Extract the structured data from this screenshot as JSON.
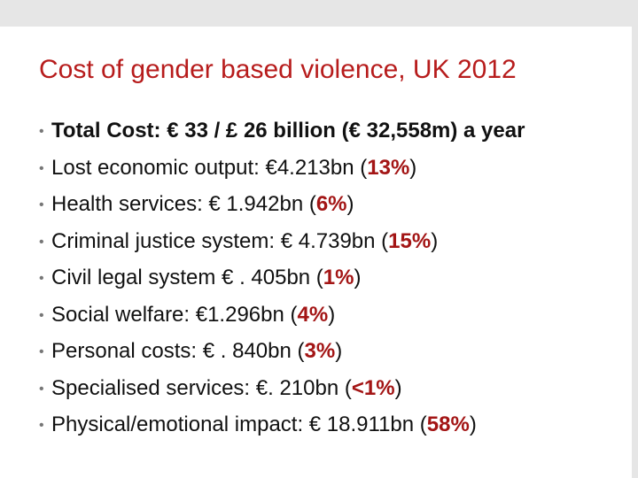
{
  "slide": {
    "title": "Cost of gender based violence, UK 2012",
    "bullets": [
      {
        "text": "Total Cost: € 33 / £ 26 billion (€ 32,558m) a year",
        "bold": true
      },
      {
        "prefix": "Lost economic output: €4.213bn (",
        "pct": "13%",
        "suffix": ")"
      },
      {
        "prefix": "Health services: € 1.942bn (",
        "pct": "6%",
        "suffix": ")"
      },
      {
        "prefix": "Criminal justice system: € 4.739bn (",
        "pct": "15%",
        "suffix": ")"
      },
      {
        "prefix": "Civil legal system € . 405bn (",
        "pct": "1%",
        "suffix": ")"
      },
      {
        "prefix": "Social welfare: €1.296bn (",
        "pct": "4%",
        "suffix": ")"
      },
      {
        "prefix": "Personal costs: € . 840bn (",
        "pct": "3%",
        "suffix": ")"
      },
      {
        "prefix": "Specialised services: €. 210bn (",
        "pct": "<1%",
        "suffix": ")"
      },
      {
        "prefix": "Physical/emotional impact: € 18.911bn (",
        "pct": "58%",
        "suffix": ")"
      }
    ]
  },
  "colors": {
    "title": "#b71c1c",
    "percent": "#a31515",
    "frame": "#e6e6e6"
  }
}
